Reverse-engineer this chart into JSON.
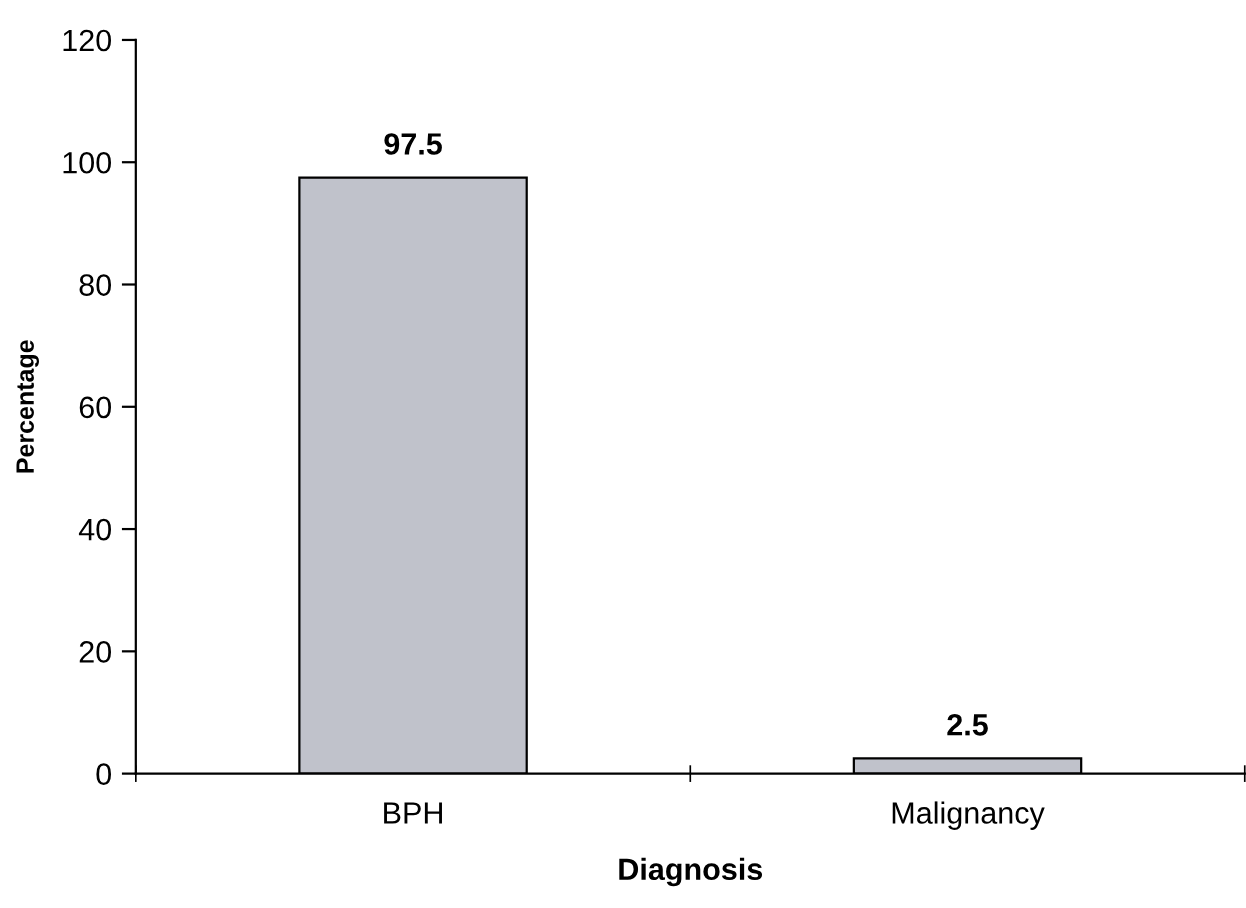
{
  "chart_data": {
    "type": "bar",
    "xlabel": "Diagnosis",
    "ylabel": "Percentage",
    "categories": [
      "BPH",
      "Malignancy"
    ],
    "values": [
      97.5,
      2.5
    ],
    "color": "#c0c2cb",
    "ylim": [
      0,
      120
    ],
    "yticks": [
      0,
      20,
      40,
      60,
      80,
      100,
      120
    ],
    "data_labels": true,
    "grid": false,
    "legend": false
  }
}
